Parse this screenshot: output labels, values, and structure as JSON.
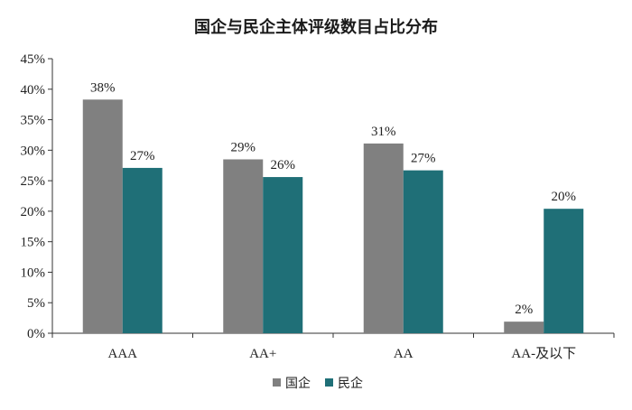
{
  "chart_data": {
    "type": "bar",
    "title": "国企与民企主体评级数目占比分布",
    "xlabel": "",
    "ylabel": "",
    "categories": [
      "AAA",
      "AA+",
      "AA",
      "AA-及以下"
    ],
    "series": [
      {
        "name": "国企",
        "values": [
          38.3,
          28.5,
          31.1,
          1.9
        ],
        "labels": [
          "38%",
          "29%",
          "31%",
          "2%"
        ],
        "color": "#808080"
      },
      {
        "name": "民企",
        "values": [
          27.1,
          25.6,
          26.7,
          20.4
        ],
        "labels": [
          "27%",
          "26%",
          "27%",
          "20%"
        ],
        "color": "#1f6f77"
      }
    ],
    "ylim": [
      0,
      45
    ],
    "yticks": [
      "0%",
      "5%",
      "10%",
      "15%",
      "20%",
      "25%",
      "30%",
      "35%",
      "40%",
      "45%"
    ],
    "ytick_values": [
      0,
      5,
      10,
      15,
      20,
      25,
      30,
      35,
      40,
      45
    ],
    "grid": false,
    "legend": "bottom-center"
  }
}
